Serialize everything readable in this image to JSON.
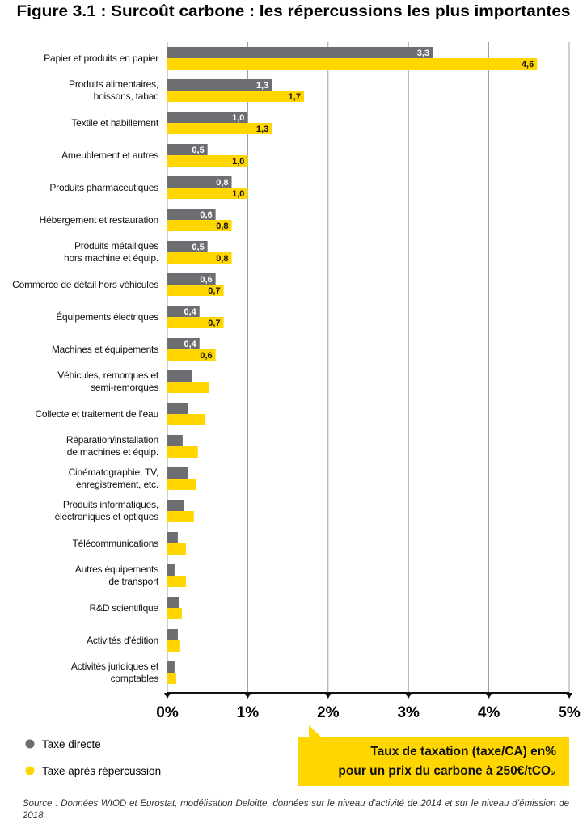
{
  "chart_data": {
    "type": "barh",
    "title": "Figure 3.1 : Surcoût carbone : les répercussions les plus importantes",
    "x_label": "Taux de taxation (taxe/CA) en%\npour un prix du carbone à 250€/tCO₂",
    "source": "Source : Données WIOD et Eurostat, modélisation Deloitte, données sur le niveau d’activité de 2014 et sur le niveau d’émission de 2018.",
    "categories": [
      "Papier et produits en papier",
      "Produits alimentaires,\nboissons, tabac",
      "Textile et habillement",
      "Ameublement et autres",
      "Produits pharmaceutiques",
      "Hébergement et restauration",
      "Produits métalliques\nhors machine et équip.",
      "Commerce de détail hors véhicules",
      "Équipements électriques",
      "Machines et équipements",
      "Véhicules, remorques et\nsemi-remorques",
      "Collecte et traitement de l’eau",
      "Réparation/installation\nde machines et équip.",
      "Cinématographie, TV,\nenregistrement, etc.",
      "Produits informatiques,\nélectroniques et optiques",
      "Télécommunications",
      "Autres équipements\nde transport",
      "R&D scientifique",
      "Activités d’édition",
      "Activités juridiques et\ncomptables"
    ],
    "series": [
      {
        "name": "Taxe directe",
        "color": "#6d6e71",
        "values": [
          3.3,
          1.3,
          1.0,
          0.5,
          0.8,
          0.6,
          0.5,
          0.6,
          0.4,
          0.4,
          0.31,
          0.26,
          0.19,
          0.26,
          0.21,
          0.13,
          0.09,
          0.15,
          0.13,
          0.09
        ],
        "value_labels": [
          "3,3",
          "1,3",
          "1,0",
          "0,5",
          "0,8",
          "0,6",
          "0,5",
          "0,6",
          "0,4",
          "0,4",
          null,
          null,
          null,
          null,
          null,
          null,
          null,
          null,
          null,
          null
        ]
      },
      {
        "name": "Taxe après répercussion",
        "color": "#ffd600",
        "values": [
          4.6,
          1.7,
          1.3,
          1.0,
          1.0,
          0.8,
          0.8,
          0.7,
          0.7,
          0.6,
          0.52,
          0.47,
          0.38,
          0.36,
          0.33,
          0.23,
          0.23,
          0.18,
          0.16,
          0.11
        ],
        "value_labels": [
          "4,6",
          "1,7",
          "1,3",
          "1,0",
          "1,0",
          "0,8",
          "0,8",
          "0,7",
          "0,7",
          "0,6",
          null,
          null,
          null,
          null,
          null,
          null,
          null,
          null,
          null,
          null
        ]
      }
    ],
    "xlim": [
      0,
      5
    ],
    "xticks": [
      {
        "value": 0,
        "label": "0%"
      },
      {
        "value": 1,
        "label": "1%"
      },
      {
        "value": 2,
        "label": "2%"
      },
      {
        "value": 3,
        "label": "3%"
      },
      {
        "value": 4,
        "label": "4%"
      },
      {
        "value": 5,
        "label": "5%"
      }
    ],
    "grid": true
  }
}
